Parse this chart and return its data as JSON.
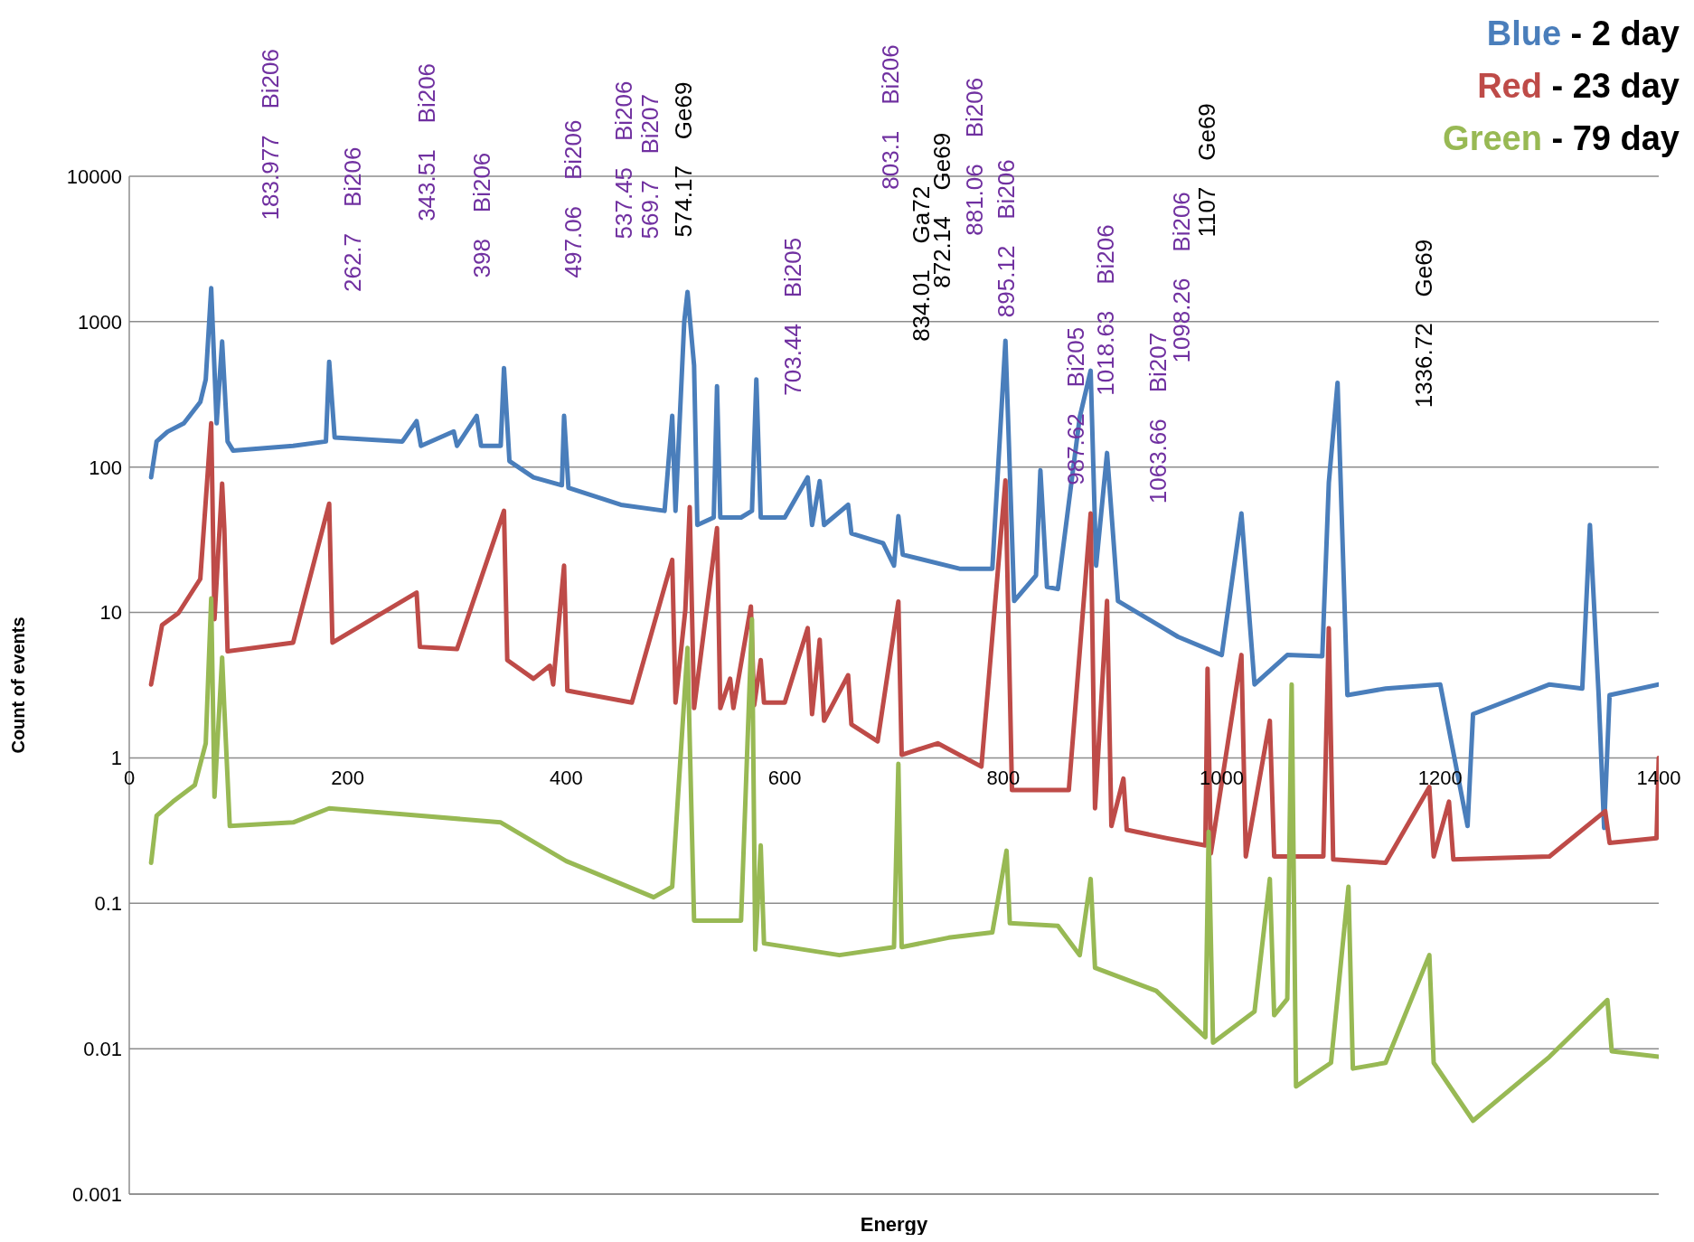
{
  "chart_data": {
    "type": "line",
    "xlabel": "Energy",
    "ylabel": "Count of events",
    "log": "y",
    "grid": "y",
    "legend": "top right",
    "xlim": [
      0,
      1400
    ],
    "xticks": [
      0,
      200,
      400,
      600,
      800,
      1000,
      1200,
      1400
    ],
    "ylim": [
      0.001,
      10000
    ],
    "yticks": [
      0.001,
      0.01,
      0.1,
      1,
      10,
      100,
      1000,
      10000
    ],
    "series": [
      {
        "name": "Blue - 2 day",
        "color": "#4a7ebb",
        "x": [
          20,
          25,
          35,
          50,
          65,
          70,
          75,
          80,
          85,
          90,
          95,
          150,
          180,
          183,
          188,
          250,
          263,
          267,
          297,
          300,
          318,
          322,
          340,
          343,
          348,
          370,
          396,
          398,
          402,
          450,
          490,
          497,
          500,
          508,
          511,
          517,
          520,
          535,
          538,
          541,
          560,
          570,
          574,
          578,
          600,
          621,
          625,
          632,
          636,
          658,
          661,
          690,
          700,
          704,
          708,
          760,
          790,
          802,
          810,
          830,
          834,
          840,
          850,
          870,
          880,
          885,
          895,
          905,
          960,
          1000,
          1018,
          1030,
          1060,
          1092,
          1098,
          1106,
          1115,
          1150,
          1200,
          1225,
          1230,
          1300,
          1330,
          1337,
          1345,
          1350,
          1355,
          1400
        ],
        "values": [
          85,
          150,
          175,
          200,
          280,
          400,
          1700,
          200,
          730,
          150,
          130,
          140,
          150,
          530,
          160,
          150,
          207,
          140,
          176,
          140,
          225,
          140,
          140,
          480,
          110,
          85,
          75,
          225,
          72,
          55,
          50,
          225,
          50,
          1000,
          1600,
          500,
          40,
          45,
          360,
          45,
          45,
          50,
          400,
          45,
          45,
          85,
          40,
          80,
          40,
          55,
          35,
          30,
          21,
          46,
          25,
          20,
          20,
          740,
          12,
          18,
          95,
          15,
          14.5,
          220,
          460,
          21,
          125,
          12,
          6.8,
          5.1,
          48,
          3.2,
          5.1,
          5,
          78,
          380,
          2.7,
          3,
          3.2,
          0.34,
          2,
          3.2,
          3,
          40,
          2.7,
          0.33,
          2.7,
          3.2
        ]
      },
      {
        "name": "Red - 23 day",
        "color": "#be4b48",
        "x": [
          20,
          30,
          45,
          65,
          75,
          78,
          85,
          87,
          90,
          150,
          183,
          186,
          263,
          266,
          300,
          343,
          346,
          370,
          385,
          388,
          398,
          401,
          460,
          497,
          500,
          509,
          513,
          517,
          538,
          541,
          550,
          553,
          569,
          572,
          578,
          581,
          600,
          621,
          625,
          632,
          636,
          658,
          661,
          685,
          704,
          707,
          740,
          780,
          802,
          808,
          860,
          880,
          884,
          895,
          899,
          910,
          913,
          950,
          985,
          987,
          990,
          1018,
          1022,
          1044,
          1048,
          1093,
          1098,
          1102,
          1150,
          1190,
          1194,
          1208,
          1212,
          1300,
          1351,
          1355,
          1398,
          1400
        ],
        "values": [
          3.2,
          8.2,
          9.9,
          17,
          200,
          9,
          77,
          38,
          5.4,
          6.2,
          56,
          6.2,
          13.7,
          5.8,
          5.6,
          50,
          4.7,
          3.5,
          4.3,
          3.2,
          21,
          2.9,
          2.4,
          23,
          2.4,
          10.4,
          53,
          2.2,
          38,
          2.2,
          3.5,
          2.2,
          11,
          2.3,
          4.7,
          2.4,
          2.4,
          7.8,
          2,
          6.5,
          1.8,
          3.7,
          1.7,
          1.3,
          11.9,
          1.05,
          1.26,
          0.87,
          81,
          0.6,
          0.6,
          48,
          0.45,
          12,
          0.34,
          0.72,
          0.32,
          0.28,
          0.25,
          4.1,
          0.22,
          5.1,
          0.21,
          1.8,
          0.21,
          0.21,
          7.8,
          0.2,
          0.19,
          0.63,
          0.21,
          0.5,
          0.2,
          0.21,
          0.43,
          0.26,
          0.28,
          1
        ]
      },
      {
        "name": "Green - 79 day",
        "color": "#98b954",
        "x": [
          20,
          25,
          40,
          60,
          70,
          75,
          78,
          85,
          87,
          92,
          150,
          183,
          250,
          340,
          400,
          480,
          497,
          511,
          517,
          560,
          570,
          573,
          578,
          581,
          650,
          700,
          704,
          707,
          750,
          790,
          803,
          806,
          850,
          870,
          880,
          884,
          940,
          985,
          988,
          992,
          1030,
          1044,
          1048,
          1060,
          1064,
          1068,
          1100,
          1116,
          1120,
          1150,
          1190,
          1194,
          1230,
          1300,
          1353,
          1357,
          1400
        ],
        "values": [
          0.19,
          0.4,
          0.5,
          0.65,
          1.26,
          12.5,
          0.54,
          4.9,
          2.2,
          0.34,
          0.36,
          0.45,
          0.41,
          0.36,
          0.195,
          0.11,
          0.13,
          5.7,
          0.076,
          0.076,
          9,
          0.048,
          0.25,
          0.053,
          0.044,
          0.05,
          0.91,
          0.05,
          0.058,
          0.063,
          0.23,
          0.073,
          0.07,
          0.044,
          0.147,
          0.036,
          0.025,
          0.012,
          0.31,
          0.011,
          0.018,
          0.147,
          0.017,
          0.022,
          3.2,
          0.0055,
          0.008,
          0.13,
          0.0073,
          0.008,
          0.044,
          0.008,
          0.0032,
          0.0088,
          0.0216,
          0.0096,
          0.0088
        ]
      }
    ],
    "annotations": [
      "183.977    Bi206",
      "262.7    Bi206",
      "343.51    Bi206",
      "398    Bi206",
      "497.06    Bi206",
      "537.45    Bi206",
      "569.7    Bi207",
      "574.17    Ge69",
      "703.44    Bi205",
      "803.1    Bi206",
      "834.01    Ga72",
      "872.14    Ge69",
      "881.06    Bi206",
      "895.12    Bi206",
      "987.62    Bi205",
      "1018.63    Bi206",
      "1063.66    Bi207",
      "1098.26    Bi206",
      "1107    Ge69",
      "1336.72    Ge69"
    ]
  }
}
